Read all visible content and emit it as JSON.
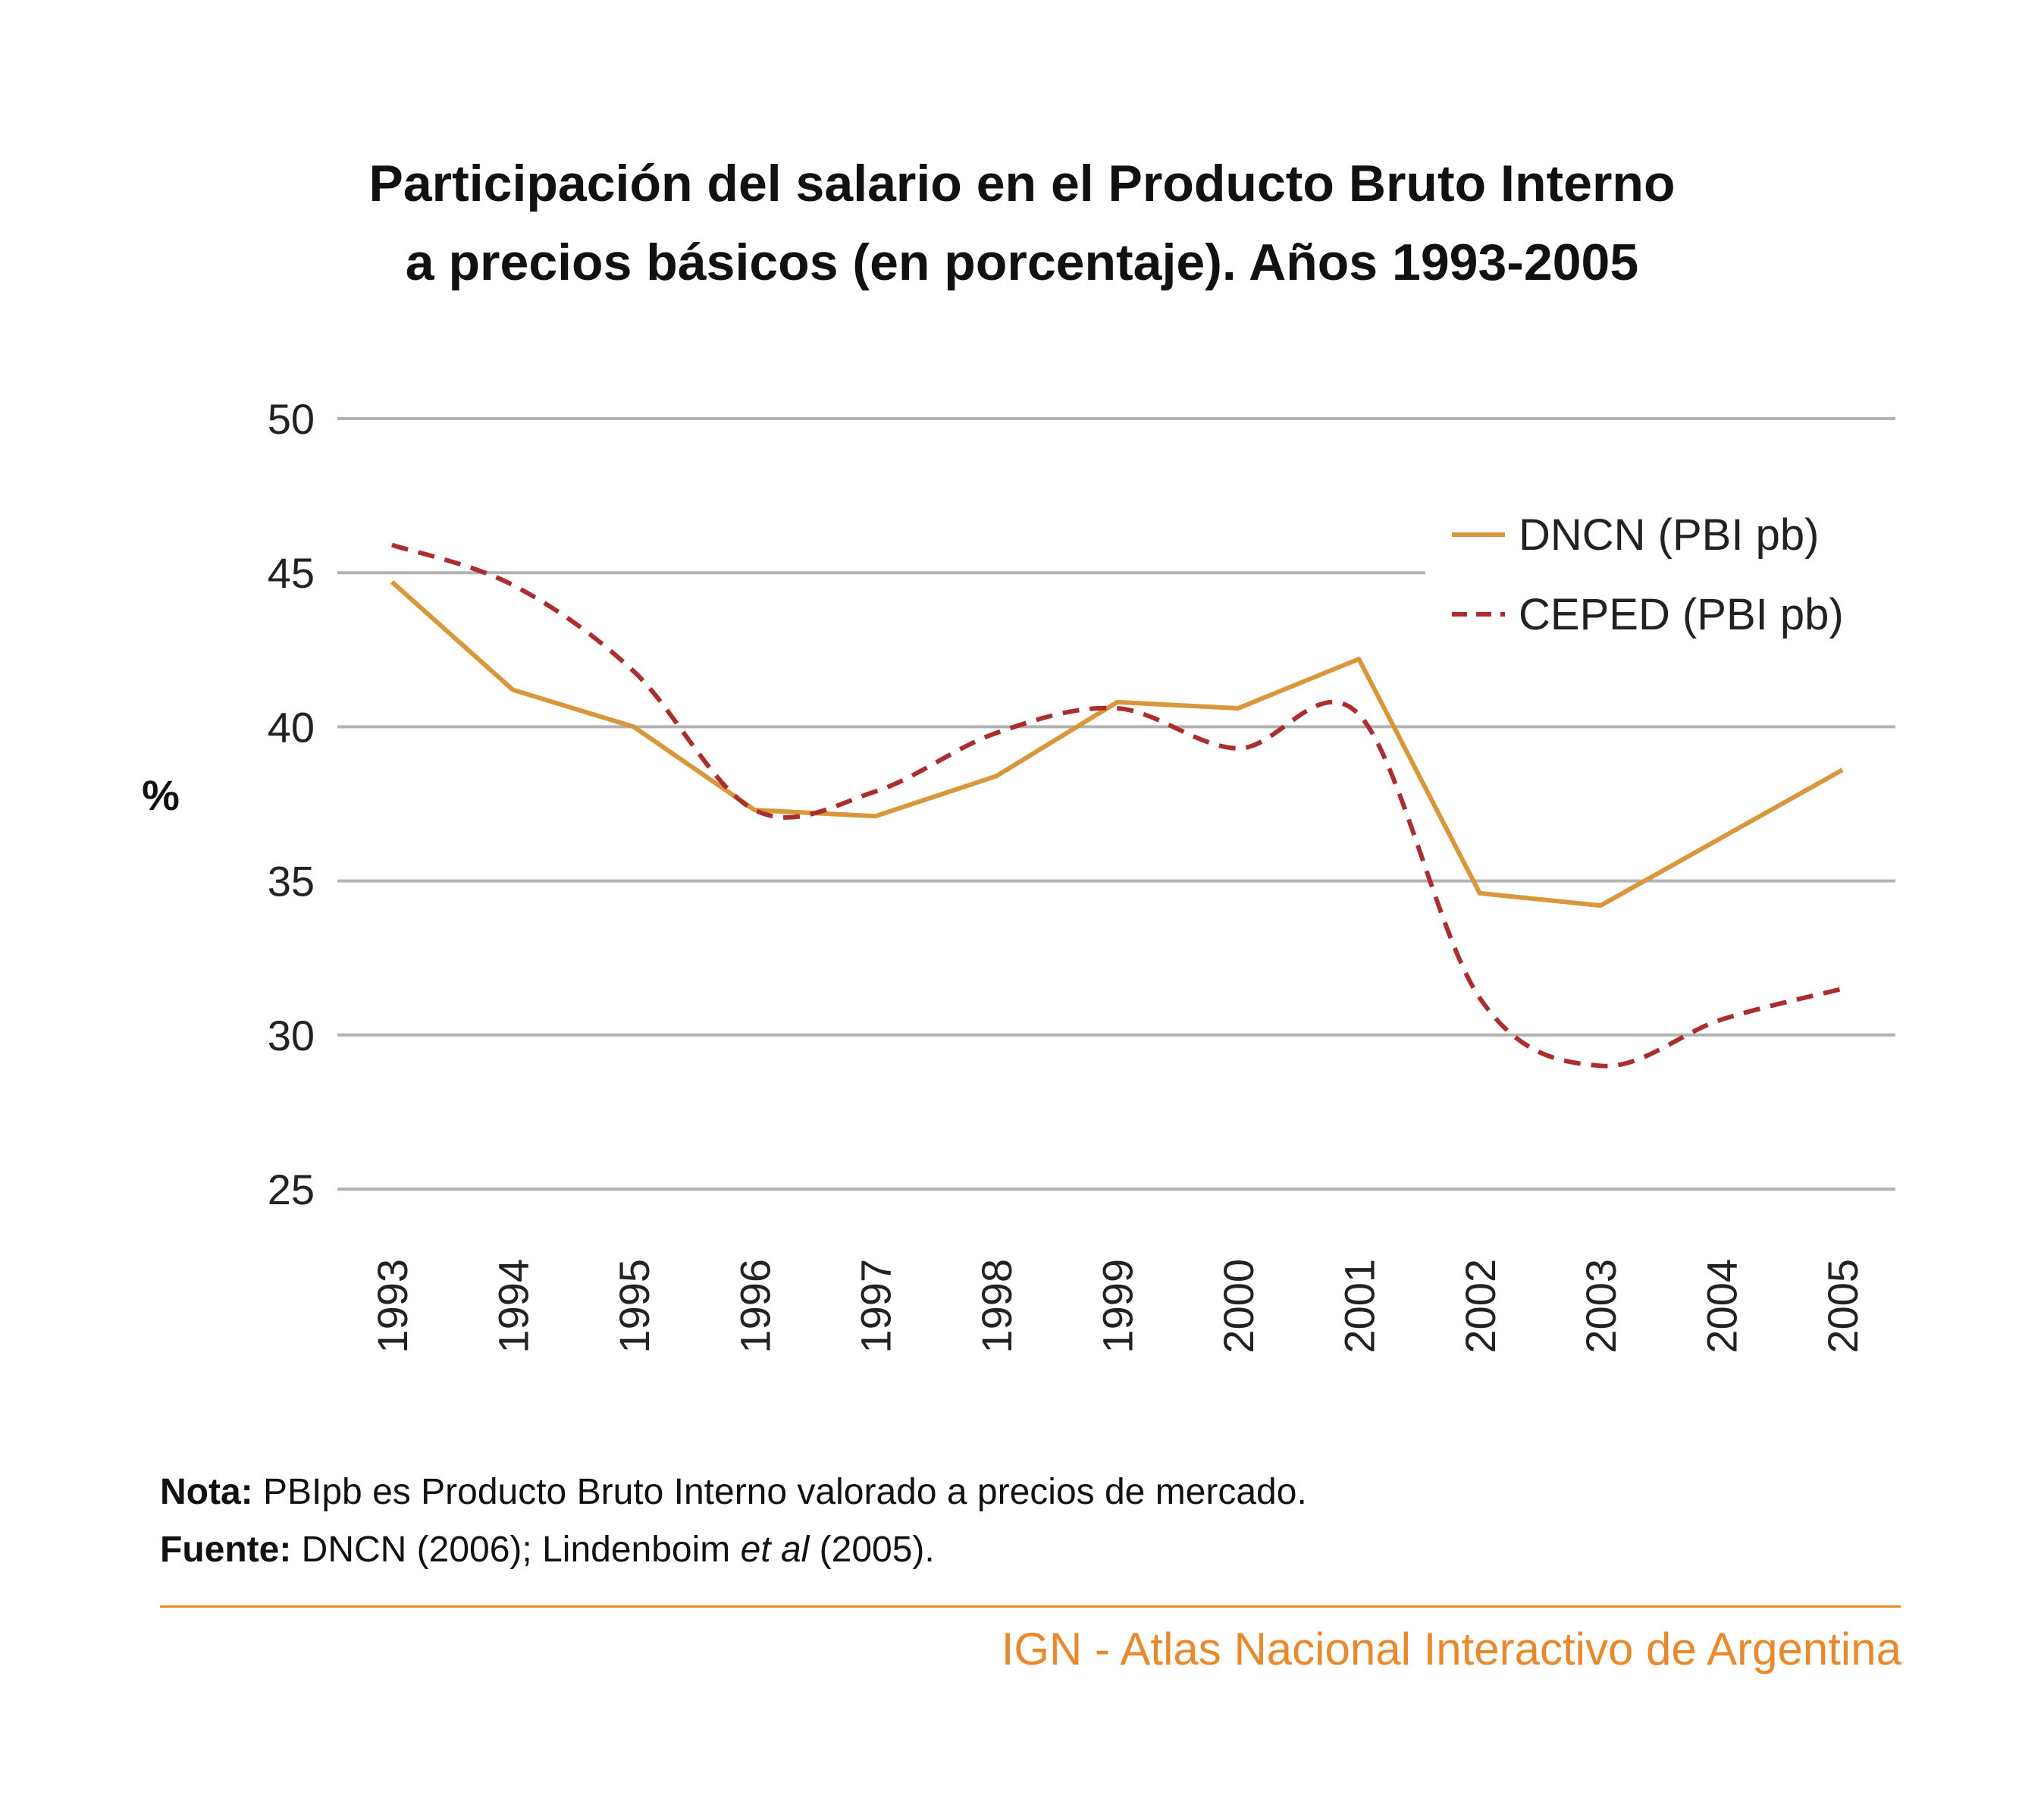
{
  "title_line1": "Participación del salario en el Producto Bruto Interno",
  "title_line2": "a precios básicos (en porcentaje). Años 1993-2005",
  "chart_data": {
    "type": "line",
    "ylabel": "%",
    "xlabel": "",
    "ylim": [
      25,
      50
    ],
    "yticks": [
      "25",
      "30",
      "35",
      "40",
      "45",
      "50"
    ],
    "categories": [
      "1993",
      "1994",
      "1995",
      "1996",
      "1997",
      "1998",
      "1999",
      "2000",
      "2001",
      "2002",
      "2003",
      "2004",
      "2005"
    ],
    "grid": true,
    "legend_position": "top-right",
    "series": [
      {
        "name": "DNCN (PBI pb)",
        "style": "solid",
        "color": "#d9963a",
        "values": [
          44.7,
          41.2,
          40.0,
          37.3,
          37.1,
          38.4,
          40.8,
          40.6,
          42.2,
          34.6,
          34.2,
          36.4,
          38.6
        ]
      },
      {
        "name": "CEPED (PBI pb)",
        "style": "dashed",
        "color": "#ab2e2e",
        "values": [
          45.9,
          44.6,
          41.8,
          37.3,
          37.9,
          39.8,
          40.6,
          39.3,
          40.4,
          31.2,
          29.0,
          30.5,
          31.5
        ]
      }
    ]
  },
  "notes": {
    "nota_label": "Nota:",
    "nota_text": " PBIpb es Producto Bruto Interno valorado a precios de mercado.",
    "fuente_label": "Fuente:",
    "fuente_text_1": " DNCN (2006); Lindenboim ",
    "fuente_italic": "et al",
    "fuente_text_2": " (2005)."
  },
  "footer": "IGN - Atlas Nacional Interactivo de Argentina",
  "colors": {
    "accent": "#e8892e",
    "dncn": "#d9963a",
    "ceped": "#ab2e2e",
    "grid": "#b3b3b3"
  }
}
